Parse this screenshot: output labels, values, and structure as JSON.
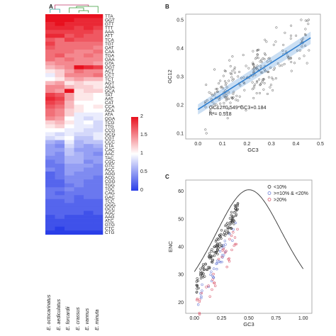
{
  "panels": {
    "a": "A",
    "b": "B",
    "c": "C"
  },
  "heatmap": {
    "codons": [
      "TTA",
      "GGT",
      "GTT",
      "TTT",
      "AAA",
      "ATT",
      "TCA",
      "TGT",
      "GAT",
      "CAA",
      "TGA",
      "GAA",
      "GTA",
      "GGT",
      "ACT",
      "CCT",
      "TCT",
      "AGT",
      "AGA",
      "GCA",
      "TAT",
      "AAT",
      "CAT",
      "CCA",
      "ACA",
      "ATA",
      "GGA",
      "TCG",
      "TTG",
      "CCG",
      "GCG",
      "CGT",
      "CCC",
      "CTA",
      "CAC",
      "AAC",
      "TAC",
      "CGC",
      "GTC",
      "ACC",
      "AGG",
      "ACG",
      "CGG",
      "TGG",
      "TGC",
      "CAG",
      "GAC",
      "TCC",
      "GGG",
      "GCC",
      "AGC",
      "AAG",
      "ATC",
      "GTG",
      "CTC",
      "CTG"
    ],
    "species": [
      "E. octocarinatus",
      "E. aediculatus",
      "E. forcardii",
      "E. crassus",
      "E. vannus",
      "E. minuta"
    ],
    "colorbar": {
      "ticks": [
        "2",
        "1.5",
        "1",
        "0.5",
        "0"
      ],
      "colors": [
        "#e8101e",
        "#ffffff",
        "#2a3ee8"
      ]
    },
    "values": [
      [
        2.0,
        2.0,
        2.0,
        2.0,
        2.0,
        2.0
      ],
      [
        2.0,
        2.0,
        2.0,
        1.9,
        1.9,
        1.9
      ],
      [
        1.9,
        2.0,
        1.9,
        1.9,
        1.9,
        1.9
      ],
      [
        1.9,
        1.9,
        1.9,
        1.8,
        1.9,
        1.8
      ],
      [
        1.8,
        1.8,
        1.8,
        1.8,
        1.8,
        1.7
      ],
      [
        1.9,
        1.9,
        1.7,
        1.8,
        1.7,
        1.7
      ],
      [
        1.7,
        1.6,
        1.8,
        1.7,
        1.7,
        1.7
      ],
      [
        1.8,
        1.6,
        1.6,
        1.6,
        1.6,
        1.6
      ],
      [
        1.7,
        1.6,
        1.6,
        1.6,
        1.6,
        1.5
      ],
      [
        1.6,
        1.6,
        1.6,
        1.5,
        1.5,
        1.6
      ],
      [
        1.6,
        1.7,
        1.5,
        1.5,
        1.6,
        1.5
      ],
      [
        1.6,
        1.5,
        1.6,
        1.5,
        1.5,
        1.5
      ],
      [
        1.4,
        1.5,
        1.5,
        1.5,
        1.5,
        1.4
      ],
      [
        1.3,
        1.4,
        1.5,
        2.0,
        1.9,
        1.8
      ],
      [
        1.1,
        1.2,
        1.4,
        1.6,
        1.5,
        1.5
      ],
      [
        0.9,
        1.2,
        1.5,
        1.5,
        1.5,
        1.6
      ],
      [
        1.0,
        1.1,
        1.3,
        1.4,
        1.3,
        1.3
      ],
      [
        1.3,
        1.4,
        1.1,
        1.2,
        1.1,
        1.1
      ],
      [
        1.5,
        1.5,
        1.3,
        1.2,
        1.2,
        1.1
      ],
      [
        1.5,
        1.4,
        2.0,
        1.1,
        1.2,
        1.2
      ],
      [
        1.8,
        1.7,
        1.4,
        1.1,
        1.1,
        1.0
      ],
      [
        1.9,
        1.8,
        1.4,
        1.1,
        1.1,
        1.0
      ],
      [
        1.8,
        1.7,
        1.3,
        1.0,
        1.0,
        1.0
      ],
      [
        1.7,
        1.6,
        1.3,
        1.1,
        1.0,
        1.1
      ],
      [
        1.6,
        1.5,
        1.2,
        1.1,
        1.0,
        1.0
      ],
      [
        1.6,
        1.5,
        1.2,
        0.9,
        0.9,
        0.9
      ],
      [
        1.5,
        1.4,
        1.0,
        0.9,
        0.8,
        0.9
      ],
      [
        1.2,
        1.3,
        1.1,
        0.9,
        1.0,
        0.8
      ],
      [
        1.1,
        1.2,
        1.0,
        0.9,
        0.9,
        0.8
      ],
      [
        1.0,
        1.0,
        0.9,
        0.9,
        0.8,
        0.8
      ],
      [
        0.9,
        0.8,
        0.9,
        0.8,
        0.8,
        0.9
      ],
      [
        0.8,
        0.9,
        1.0,
        0.7,
        0.7,
        0.9
      ],
      [
        0.6,
        0.5,
        0.9,
        0.6,
        0.7,
        0.7
      ],
      [
        0.5,
        0.4,
        0.8,
        0.6,
        0.5,
        0.6
      ],
      [
        0.5,
        0.5,
        0.7,
        0.5,
        0.5,
        0.5
      ],
      [
        0.5,
        0.4,
        0.7,
        0.6,
        0.5,
        0.4
      ],
      [
        0.4,
        0.4,
        0.6,
        0.6,
        0.5,
        0.5
      ],
      [
        0.3,
        0.4,
        0.6,
        0.6,
        0.4,
        0.5
      ],
      [
        0.3,
        0.3,
        0.5,
        0.5,
        0.5,
        0.4
      ],
      [
        0.4,
        0.3,
        0.5,
        0.5,
        0.4,
        0.4
      ],
      [
        0.2,
        0.3,
        0.5,
        0.4,
        0.4,
        0.4
      ],
      [
        0.2,
        0.3,
        0.4,
        0.4,
        0.4,
        0.3
      ],
      [
        0.2,
        0.2,
        0.4,
        0.4,
        0.3,
        0.3
      ],
      [
        0.2,
        0.2,
        0.3,
        0.4,
        0.3,
        0.3
      ],
      [
        0.3,
        0.3,
        0.4,
        0.3,
        0.3,
        0.3
      ],
      [
        0.3,
        0.2,
        0.3,
        0.3,
        0.3,
        0.3
      ],
      [
        0.3,
        0.3,
        0.3,
        0.2,
        0.3,
        0.3
      ],
      [
        0.2,
        0.2,
        0.3,
        0.2,
        0.2,
        0.2
      ],
      [
        0.2,
        0.2,
        0.2,
        0.2,
        0.2,
        0.2
      ],
      [
        0.2,
        0.2,
        0.2,
        0.2,
        0.2,
        0.2
      ],
      [
        0.2,
        0.2,
        0.2,
        0.2,
        0.1,
        0.2
      ],
      [
        0.1,
        0.2,
        0.1,
        0.1,
        0.1,
        0.1
      ],
      [
        0.1,
        0.1,
        0.1,
        0.1,
        0.1,
        0.1
      ],
      [
        0.1,
        0.1,
        0.1,
        0.1,
        0.1,
        0.1
      ],
      [
        0.1,
        0.0,
        0.1,
        0.1,
        0.1,
        0.1
      ],
      [
        0.0,
        0.0,
        0.0,
        0.0,
        0.0,
        0.0
      ]
    ]
  },
  "chart_data": [
    {
      "type": "scatter",
      "panel": "B",
      "xlabel": "GC3",
      "ylabel": "GC12",
      "xlim": [
        -0.05,
        0.5
      ],
      "ylim": [
        0.08,
        0.52
      ],
      "xticks": [
        "0.0",
        "0.1",
        "0.2",
        "0.3",
        "0.4",
        "0.5"
      ],
      "yticks": [
        "0.1",
        "0.2",
        "0.3",
        "0.4",
        "0.5"
      ],
      "equation": "GC12=0.549*GC3+0.184",
      "r2": "R²= 0.518",
      "fit": {
        "slope": 0.549,
        "intercept": 0.184,
        "x_range": [
          0.0,
          0.46
        ]
      },
      "point_color": "#555555",
      "line_color": "#2f7fd0"
    },
    {
      "type": "scatter",
      "panel": "C",
      "xlabel": "GC3",
      "ylabel": "ENC",
      "xlim": [
        -0.08,
        1.08
      ],
      "ylim": [
        16,
        64
      ],
      "xticks": [
        "0.00",
        "0.25",
        "0.50",
        "0.75",
        "1.00"
      ],
      "yticks": [
        "20",
        "30",
        "40",
        "50",
        "60"
      ],
      "curve": "ENC = 2 + GC3 + 29/(GC3^2 + (1-GC3)^2)",
      "legend": [
        {
          "label": "<10%",
          "color": "#333333"
        },
        {
          "label": ">=10% & <20%",
          "color": "#6d7fd6"
        },
        {
          "label": ">20%",
          "color": "#d9566a"
        }
      ]
    }
  ]
}
